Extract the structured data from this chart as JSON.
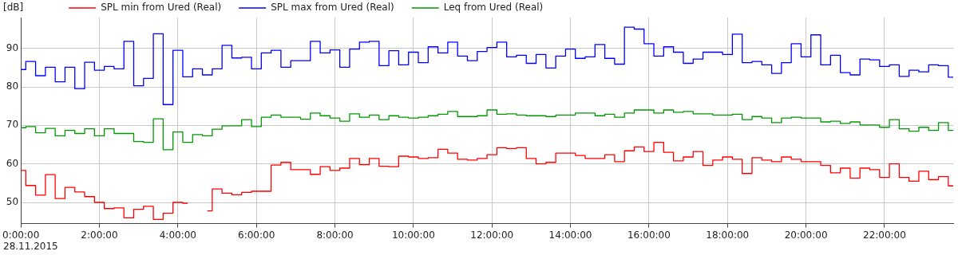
{
  "chart_data": {
    "type": "step",
    "ylabel": "[dB]",
    "annotations": [
      "28.11.2015"
    ],
    "x": [
      0,
      0.25,
      0.5,
      0.75,
      1,
      1.25,
      1.5,
      1.75,
      2,
      2.25,
      2.5,
      2.75,
      3,
      3.25,
      3.5,
      3.75,
      4,
      4.25,
      4.5,
      4.75,
      5,
      5.25,
      5.5,
      5.75,
      6,
      6.25,
      6.5,
      6.75,
      7,
      7.25,
      7.5,
      7.75,
      8,
      8.25,
      8.5,
      8.75,
      9,
      9.25,
      9.5,
      9.75,
      10,
      10.25,
      10.5,
      10.75,
      11,
      11.25,
      11.5,
      11.75,
      12,
      12.25,
      12.5,
      12.75,
      13,
      13.25,
      13.5,
      13.75,
      14,
      14.25,
      14.5,
      14.75,
      15,
      15.25,
      15.5,
      15.75,
      16,
      16.25,
      16.5,
      16.75,
      17,
      17.25,
      17.5,
      17.75,
      18,
      18.25,
      18.5,
      18.75,
      19,
      19.25,
      19.5,
      19.75,
      20,
      20.25,
      20.5,
      20.75,
      21,
      21.25,
      21.5,
      21.75,
      22,
      22.25,
      22.5,
      22.75,
      23,
      23.25,
      23.5,
      23.75
    ],
    "series": [
      {
        "name": "SPL min from Ured (Real)",
        "color": "#ff0000",
        "values": [
          58.3,
          54.4,
          51.9,
          57.2,
          51.0,
          53.9,
          52.7,
          51.5,
          50.0,
          48.4,
          48.6,
          46.0,
          48.2,
          49.0,
          45.6,
          47.2,
          50.0,
          49.8,
          null,
          47.8,
          53.5,
          52.4,
          52.0,
          52.6,
          52.9,
          52.9,
          59.7,
          60.4,
          58.5,
          58.5,
          57.3,
          59.3,
          58.3,
          58.9,
          61.4,
          59.8,
          61.4,
          59.4,
          59.3,
          62.0,
          61.8,
          61.4,
          61.6,
          63.8,
          62.8,
          61.2,
          61.0,
          61.4,
          62.4,
          64.2,
          64.0,
          64.2,
          61.4,
          60.0,
          60.4,
          62.8,
          62.8,
          62.2,
          61.4,
          61.4,
          62.4,
          60.6,
          63.4,
          64.4,
          63.2,
          65.6,
          63.0,
          60.8,
          61.8,
          63.2,
          59.6,
          61.0,
          61.8,
          61.2,
          57.5,
          61.6,
          61.0,
          60.6,
          61.8,
          61.2,
          60.6,
          60.6,
          59.6,
          57.7,
          58.9,
          56.3,
          58.9,
          58.5,
          56.5,
          60.0,
          56.5,
          55.5,
          58.1,
          55.9,
          56.7,
          54.3
        ]
      },
      {
        "name": "SPL max from Ured (Real)",
        "color": "#0000ff",
        "values": [
          84.5,
          86.6,
          82.9,
          85.1,
          81.3,
          85.1,
          79.5,
          86.4,
          84.3,
          85.3,
          84.7,
          91.8,
          80.3,
          82.2,
          93.8,
          75.4,
          89.5,
          82.6,
          84.7,
          83.1,
          84.7,
          90.8,
          87.5,
          87.7,
          84.7,
          88.8,
          89.5,
          85.1,
          86.8,
          86.8,
          91.8,
          88.8,
          89.6,
          85.1,
          89.8,
          91.6,
          91.8,
          85.5,
          89.4,
          85.7,
          89.0,
          86.3,
          90.4,
          88.8,
          91.6,
          88.0,
          86.8,
          89.2,
          90.2,
          91.6,
          87.8,
          88.2,
          86.1,
          88.4,
          84.9,
          88.0,
          89.8,
          87.4,
          87.8,
          91.0,
          87.4,
          85.9,
          95.5,
          95.0,
          91.2,
          88.0,
          90.4,
          89.0,
          86.1,
          87.2,
          89.0,
          89.0,
          88.4,
          93.7,
          86.3,
          86.6,
          85.7,
          83.5,
          86.3,
          91.2,
          87.8,
          93.5,
          85.7,
          88.2,
          83.7,
          83.1,
          87.2,
          87.0,
          85.3,
          85.7,
          82.7,
          84.3,
          83.9,
          85.7,
          85.5,
          82.5
        ]
      },
      {
        "name": "Leq from Ured (Real)",
        "color": "#009900",
        "values": [
          69.4,
          69.7,
          68.1,
          69.2,
          67.3,
          68.7,
          67.9,
          69.1,
          67.3,
          69.1,
          67.9,
          67.9,
          65.8,
          65.6,
          71.7,
          63.7,
          68.3,
          65.6,
          67.6,
          67.3,
          69.0,
          69.9,
          69.9,
          71.5,
          69.7,
          72.1,
          72.7,
          72.1,
          72.1,
          71.6,
          73.2,
          72.5,
          71.9,
          71.1,
          73.0,
          72.1,
          72.7,
          71.5,
          72.5,
          72.1,
          71.9,
          72.1,
          72.5,
          72.9,
          73.6,
          72.3,
          72.3,
          72.5,
          74.0,
          72.9,
          73.0,
          72.7,
          72.5,
          72.5,
          72.3,
          72.7,
          72.7,
          73.2,
          73.2,
          72.5,
          72.9,
          72.1,
          73.2,
          74.0,
          74.0,
          73.2,
          74.0,
          73.4,
          73.6,
          73.0,
          73.0,
          72.7,
          72.7,
          72.9,
          71.5,
          72.3,
          71.9,
          70.7,
          71.9,
          72.1,
          71.9,
          71.9,
          70.9,
          71.1,
          70.5,
          70.9,
          70.1,
          70.1,
          69.5,
          71.5,
          69.1,
          68.5,
          69.5,
          68.7,
          70.7,
          68.7
        ]
      }
    ],
    "xlim": [
      0,
      23.75
    ],
    "ylim": [
      44.5,
      98
    ],
    "xticks": [
      {
        "value": 0,
        "label": "0:00:00"
      },
      {
        "value": 2,
        "label": "2:00:00"
      },
      {
        "value": 4,
        "label": "4:00:00"
      },
      {
        "value": 6,
        "label": "6:00:00"
      },
      {
        "value": 8,
        "label": "8:00:00"
      },
      {
        "value": 10,
        "label": "10:00:00"
      },
      {
        "value": 12,
        "label": "12:00:00"
      },
      {
        "value": 14,
        "label": "14:00:00"
      },
      {
        "value": 16,
        "label": "16:00:00"
      },
      {
        "value": 18,
        "label": "18:00:00"
      },
      {
        "value": 20,
        "label": "20:00:00"
      },
      {
        "value": 22,
        "label": "22:00:00"
      }
    ],
    "yticks": [
      50,
      60,
      70,
      80,
      90
    ],
    "grid": true,
    "legend": "top left",
    "line_style": "solid"
  }
}
